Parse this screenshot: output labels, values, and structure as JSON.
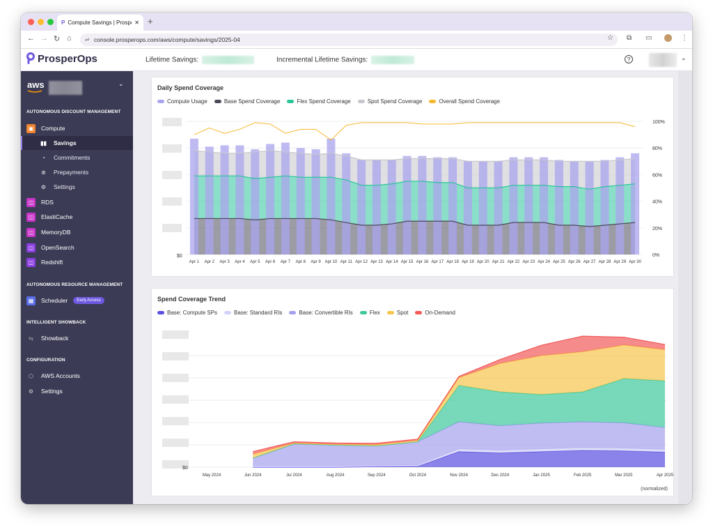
{
  "browser": {
    "tab_title": "Compute Savings | ProsperOps",
    "url": "console.prosperops.com/aws/compute/savings/2025-04"
  },
  "header": {
    "brand": "ProsperOps",
    "lifetime_savings_label": "Lifetime Savings:",
    "incremental_savings_label": "Incremental Lifetime Savings:"
  },
  "sidebar": {
    "provider": "aws",
    "sections": {
      "discount": "AUTONOMOUS DISCOUNT MANAGEMENT",
      "resource": "AUTONOMOUS RESOURCE MANAGEMENT",
      "showback": "INTELLIGENT SHOWBACK",
      "config": "CONFIGURATION"
    },
    "items": {
      "compute": "Compute",
      "savings": "Savings",
      "commitments": "Commitments",
      "prepayments": "Prepayments",
      "settings_sub": "Settings",
      "rds": "RDS",
      "elasticache": "ElastiCache",
      "memorydb": "MemoryDB",
      "opensearch": "OpenSearch",
      "redshift": "Redshift",
      "scheduler": "Scheduler",
      "early_access": "Early Access",
      "showback": "Showback",
      "aws_accounts": "AWS Accounts",
      "settings": "Settings"
    }
  },
  "chart_data": [
    {
      "type": "bar",
      "title": "Daily Spend Coverage",
      "categories": [
        "Apr 1",
        "Apr 2",
        "Apr 3",
        "Apr 4",
        "Apr 5",
        "Apr 6",
        "Apr 7",
        "Apr 8",
        "Apr 9",
        "Apr 10",
        "Apr 11",
        "Apr 12",
        "Apr 13",
        "Apr 14",
        "Apr 15",
        "Apr 16",
        "Apr 17",
        "Apr 18",
        "Apr 19",
        "Apr 20",
        "Apr 21",
        "Apr 22",
        "Apr 23",
        "Apr 24",
        "Apr 25",
        "Apr 26",
        "Apr 27",
        "Apr 28",
        "Apr 29",
        "Apr 30"
      ],
      "y_left_label": "$0",
      "y_right_ticks": [
        "0%",
        "20%",
        "40%",
        "60%",
        "80%",
        "100%"
      ],
      "series": [
        {
          "name": "Compute Usage",
          "color": "#a9a4ee",
          "values": [
            87,
            81,
            82,
            82,
            79,
            83,
            84,
            80,
            79,
            87,
            76,
            71,
            71,
            71,
            74,
            74,
            73,
            73,
            70,
            70,
            70,
            73,
            73,
            73,
            71,
            70,
            70,
            71,
            73,
            76
          ]
        },
        {
          "name": "Base Spend Coverage",
          "color": "#4a4a5a",
          "values": [
            27,
            27,
            27,
            27,
            26,
            27,
            27,
            27,
            27,
            26,
            24,
            22,
            22,
            23,
            25,
            25,
            25,
            25,
            22,
            22,
            22,
            24,
            24,
            24,
            22,
            22,
            21,
            22,
            23,
            24
          ]
        },
        {
          "name": "Flex Spend Coverage",
          "color": "#2bc49a",
          "values": [
            59,
            59,
            59,
            59,
            57,
            58,
            59,
            58,
            58,
            58,
            56,
            52,
            52,
            53,
            55,
            55,
            54,
            54,
            50,
            50,
            50,
            52,
            52,
            52,
            51,
            51,
            49,
            51,
            52,
            53
          ]
        },
        {
          "name": "Spot Spend Coverage",
          "color": "#c6c6cc",
          "values": [
            78,
            77,
            76,
            76,
            77,
            78,
            77,
            76,
            75,
            76,
            74,
            71,
            71,
            71,
            72,
            72,
            72,
            72,
            70,
            70,
            70,
            71,
            71,
            71,
            70,
            70,
            70,
            70,
            71,
            72
          ]
        },
        {
          "name": "Overall Spend Coverage",
          "color": "#f5b82e",
          "values": [
            90,
            95,
            91,
            94,
            99,
            98,
            91,
            94,
            94,
            86,
            97,
            99,
            99,
            99,
            99,
            98,
            98,
            98,
            99,
            99,
            99,
            99,
            99,
            99,
            99,
            99,
            99,
            99,
            99,
            96
          ]
        }
      ]
    },
    {
      "type": "area",
      "title": "Spend Coverage Trend",
      "categories": [
        "May 2024",
        "Jun 2024",
        "Jul 2024",
        "Aug 2024",
        "Sep 2024",
        "Oct 2024",
        "Nov 2024",
        "Dec 2024",
        "Jan 2025",
        "Feb 2025",
        "Mar 2025",
        "Apr 2025"
      ],
      "y_label": "$0",
      "note": "(normalized)",
      "series": [
        {
          "name": "Base: Compute SPs",
          "color": "#5a4fe0",
          "values": [
            null,
            0,
            0,
            0,
            0.2,
            0.3,
            6,
            5.5,
            6,
            6.5,
            6.3,
            5.8
          ]
        },
        {
          "name": "Base: Standard RIs",
          "color": "#d2d1f7",
          "values": [
            null,
            0.5,
            0.5,
            0.5,
            0.5,
            0.5,
            1,
            1,
            1,
            1,
            1,
            1
          ]
        },
        {
          "name": "Base: Convertible RIs",
          "color": "#a5a1ee",
          "values": [
            null,
            3,
            8.5,
            8,
            7.5,
            9,
            10.5,
            9.5,
            10,
            10,
            9.8,
            8.5
          ]
        },
        {
          "name": "Flex",
          "color": "#3ec99c",
          "values": [
            null,
            0,
            0,
            0,
            0,
            0,
            14,
            13,
            11,
            11.5,
            17,
            18
          ]
        },
        {
          "name": "Spot",
          "color": "#f7c44b",
          "values": [
            null,
            1.5,
            0.3,
            0.3,
            0.5,
            0.5,
            3,
            11,
            15,
            15.5,
            13,
            12
          ]
        },
        {
          "name": "On-Demand",
          "color": "#f25a5a",
          "values": [
            null,
            1,
            0.5,
            0.5,
            0.5,
            0.5,
            0.5,
            1.5,
            4,
            6,
            3,
            2
          ]
        }
      ]
    }
  ]
}
